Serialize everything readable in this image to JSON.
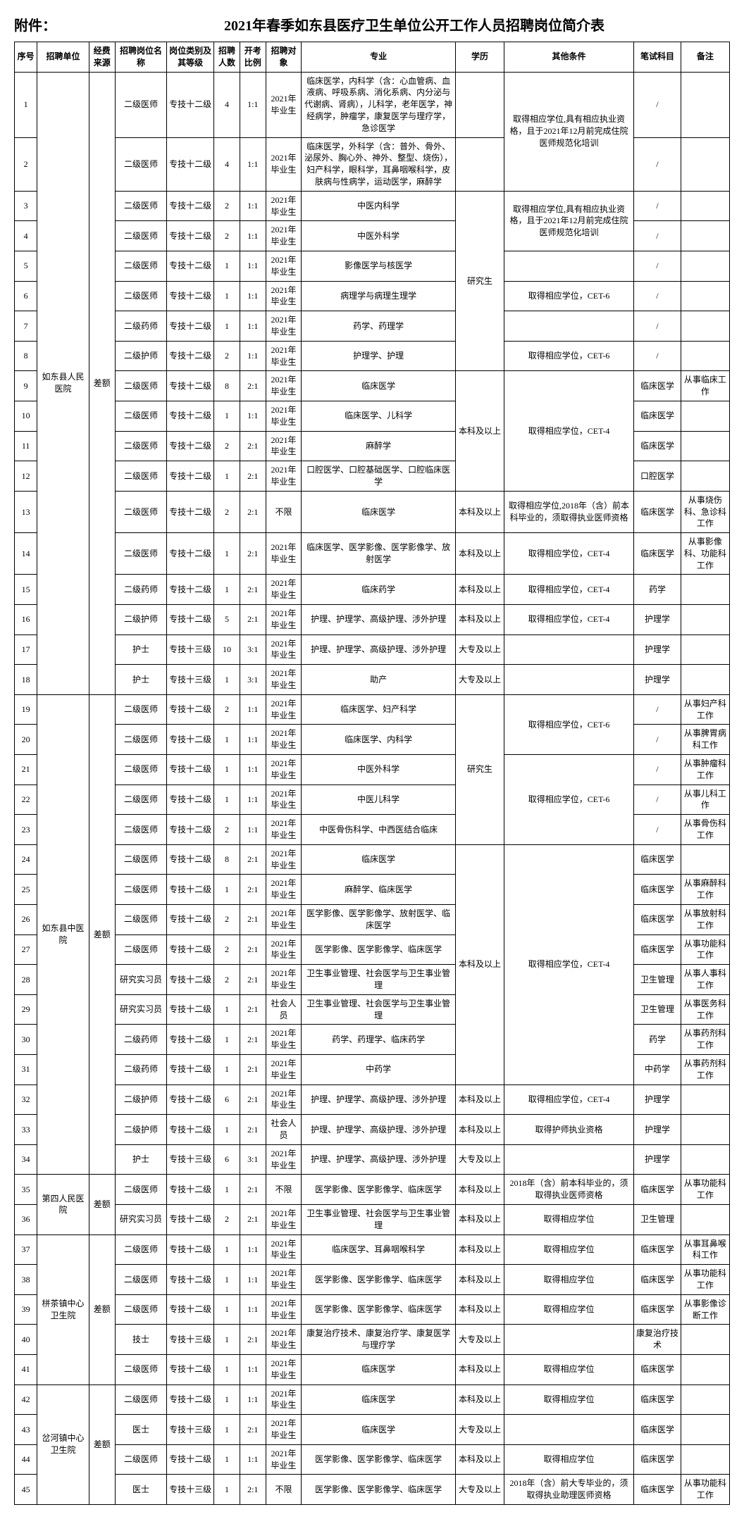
{
  "attach_label": "附件：",
  "title": "2021年春季如东县医疗卫生单位公开工作人员招聘岗位简介表",
  "headers": [
    "序号",
    "招聘单位",
    "经费来源",
    "招聘岗位名 称",
    "岗位类别及其等级",
    "招聘人数",
    "开考比例",
    "招聘对象",
    "专业",
    "学历",
    "其他条件",
    "笔试科目",
    "备注"
  ],
  "groups": [
    {
      "unit": "如东县人民医院",
      "fund": "差额",
      "rows": [
        {
          "seq": "1",
          "post": "二级医师",
          "type": "专技十二级",
          "num": "4",
          "ratio": "1:1",
          "obj": "2021年毕业生",
          "major": "临床医学，内科学（含：心血管病、血液病、呼吸系病、消化系病、内分泌与代谢病、肾病），儿科学，老年医学，神经病学，肿瘤学，康复医学与理疗学，急诊医学",
          "edu": "",
          "other": "",
          "exam": "/",
          "note": "",
          "span_other": 2,
          "other_text": "取得相应学位,具有相应执业资格，且于2021年12月前完成住院医师规范化培训"
        },
        {
          "seq": "2",
          "post": "二级医师",
          "type": "专技十二级",
          "num": "4",
          "ratio": "1:1",
          "obj": "2021年毕业生",
          "major": "临床医学，外科学（含：普外、骨外、泌尿外、胸心外、神外、整型、烧伤），妇产科学，眼科学，耳鼻咽喉科学，皮肤病与性病学，运动医学，麻醉学",
          "edu": "",
          "other": "",
          "exam": "/",
          "note": ""
        },
        {
          "seq": "3",
          "post": "二级医师",
          "type": "专技十二级",
          "num": "2",
          "ratio": "1:1",
          "obj": "2021年毕业生",
          "major": "中医内科学",
          "edu": "",
          "other": "",
          "exam": "/",
          "note": "",
          "span_other": 2,
          "other_text": "取得相应学位,具有相应执业资格，且于2021年12月前完成住院医师规范化培训",
          "span_edu": 6,
          "edu_text": "研究生"
        },
        {
          "seq": "4",
          "post": "二级医师",
          "type": "专技十二级",
          "num": "2",
          "ratio": "1:1",
          "obj": "2021年毕业生",
          "major": "中医外科学",
          "edu": "",
          "other": "",
          "exam": "/",
          "note": ""
        },
        {
          "seq": "5",
          "post": "二级医师",
          "type": "专技十二级",
          "num": "1",
          "ratio": "1:1",
          "obj": "2021年毕业生",
          "major": "影像医学与核医学",
          "edu": "",
          "other": "",
          "other_text": "",
          "exam": "/",
          "note": ""
        },
        {
          "seq": "6",
          "post": "二级医师",
          "type": "专技十二级",
          "num": "1",
          "ratio": "1:1",
          "obj": "2021年毕业生",
          "major": "病理学与病理生理学",
          "edu": "",
          "other": "",
          "other_text": "取得相应学位，CET-6",
          "exam": "/",
          "note": ""
        },
        {
          "seq": "7",
          "post": "二级药师",
          "type": "专技十二级",
          "num": "1",
          "ratio": "1:1",
          "obj": "2021年毕业生",
          "major": "药学、药理学",
          "edu": "",
          "other": "",
          "other_text": "",
          "exam": "/",
          "note": ""
        },
        {
          "seq": "8",
          "post": "二级护师",
          "type": "专技十二级",
          "num": "2",
          "ratio": "1:1",
          "obj": "2021年毕业生",
          "major": "护理学、护理",
          "edu": "",
          "other": "",
          "other_text": "取得相应学位，CET-6",
          "exam": "/",
          "note": ""
        },
        {
          "seq": "9",
          "post": "二级医师",
          "type": "专技十二级",
          "num": "8",
          "ratio": "2:1",
          "obj": "2021年毕业生",
          "major": "临床医学",
          "edu": "",
          "other": "",
          "exam": "临床医学",
          "note": "从事临床工作",
          "span_edu": 4,
          "edu_text": "本科及以上",
          "span_other": 4,
          "other_text": "取得相应学位，CET-4"
        },
        {
          "seq": "10",
          "post": "二级医师",
          "type": "专技十二级",
          "num": "1",
          "ratio": "1:1",
          "obj": "2021年毕业生",
          "major": "临床医学、儿科学",
          "edu": "",
          "other": "",
          "exam": "临床医学",
          "note": ""
        },
        {
          "seq": "11",
          "post": "二级医师",
          "type": "专技十二级",
          "num": "2",
          "ratio": "2:1",
          "obj": "2021年毕业生",
          "major": "麻醉学",
          "edu": "",
          "other": "",
          "exam": "临床医学",
          "note": ""
        },
        {
          "seq": "12",
          "post": "二级医师",
          "type": "专技十二级",
          "num": "1",
          "ratio": "2:1",
          "obj": "2021年毕业生",
          "major": "口腔医学、口腔基础医学、口腔临床医学",
          "edu": "",
          "other": "",
          "exam": "口腔医学",
          "note": ""
        },
        {
          "seq": "13",
          "post": "二级医师",
          "type": "专技十二级",
          "num": "2",
          "ratio": "2:1",
          "obj": "不限",
          "major": "临床医学",
          "edu": "",
          "edu_text": "本科及以上",
          "other": "",
          "other_text": "取得相应学位,2018年（含）前本科毕业的，须取得执业医师资格",
          "exam": "临床医学",
          "note": "从事烧伤科、急诊科工作"
        },
        {
          "seq": "14",
          "post": "二级医师",
          "type": "专技十二级",
          "num": "1",
          "ratio": "2:1",
          "obj": "2021年毕业生",
          "major": "临床医学、医学影像、医学影像学、放射医学",
          "edu": "",
          "edu_text": "本科及以上",
          "other": "",
          "other_text": "取得相应学位，CET-4",
          "exam": "临床医学",
          "note": "从事影像科、功能科工作"
        },
        {
          "seq": "15",
          "post": "二级药师",
          "type": "专技十二级",
          "num": "1",
          "ratio": "2:1",
          "obj": "2021年毕业生",
          "major": "临床药学",
          "edu": "",
          "edu_text": "本科及以上",
          "other": "",
          "other_text": "取得相应学位，CET-4",
          "exam": "药学",
          "note": ""
        },
        {
          "seq": "16",
          "post": "二级护师",
          "type": "专技十二级",
          "num": "5",
          "ratio": "2:1",
          "obj": "2021年毕业生",
          "major": "护理、护理学、高级护理、涉外护理",
          "edu": "",
          "edu_text": "本科及以上",
          "other": "",
          "other_text": "取得相应学位，CET-4",
          "exam": "护理学",
          "note": ""
        },
        {
          "seq": "17",
          "post": "护士",
          "type": "专技十三级",
          "num": "10",
          "ratio": "3:1",
          "obj": "2021年毕业生",
          "major": "护理、护理学、高级护理、涉外护理",
          "edu": "",
          "edu_text": "大专及以上",
          "other": "",
          "other_text": "",
          "exam": "护理学",
          "note": ""
        },
        {
          "seq": "18",
          "post": "护士",
          "type": "专技十三级",
          "num": "1",
          "ratio": "3:1",
          "obj": "2021年毕业生",
          "major": "助产",
          "edu": "",
          "edu_text": "大专及以上",
          "other": "",
          "other_text": "",
          "exam": "护理学",
          "note": ""
        }
      ]
    },
    {
      "unit": "如东县中医院",
      "fund": "差额",
      "rows": [
        {
          "seq": "19",
          "post": "二级医师",
          "type": "专技十二级",
          "num": "2",
          "ratio": "1:1",
          "obj": "2021年毕业生",
          "major": "临床医学、妇产科学",
          "edu": "",
          "other": "",
          "exam": "/",
          "note": "从事妇产科工作",
          "span_edu": 5,
          "edu_text": "研究生",
          "span_other": 2,
          "other_text": "取得相应学位，CET-6"
        },
        {
          "seq": "20",
          "post": "二级医师",
          "type": "专技十二级",
          "num": "1",
          "ratio": "1:1",
          "obj": "2021年毕业生",
          "major": "临床医学、内科学",
          "edu": "",
          "other": "",
          "exam": "/",
          "note": "从事脾胃病科工作"
        },
        {
          "seq": "21",
          "post": "二级医师",
          "type": "专技十二级",
          "num": "1",
          "ratio": "1:1",
          "obj": "2021年毕业生",
          "major": "中医外科学",
          "edu": "",
          "other": "",
          "exam": "/",
          "note": "从事肿瘤科工作",
          "span_other": 3,
          "other_text": "取得相应学位，CET-6"
        },
        {
          "seq": "22",
          "post": "二级医师",
          "type": "专技十二级",
          "num": "1",
          "ratio": "1:1",
          "obj": "2021年毕业生",
          "major": "中医儿科学",
          "edu": "",
          "other": "",
          "exam": "/",
          "note": "从事儿科工作"
        },
        {
          "seq": "23",
          "post": "二级医师",
          "type": "专技十二级",
          "num": "2",
          "ratio": "1:1",
          "obj": "2021年毕业生",
          "major": "中医骨伤科学、中西医结合临床",
          "edu": "",
          "other": "",
          "exam": "/",
          "note": "从事骨伤科工作"
        },
        {
          "seq": "24",
          "post": "二级医师",
          "type": "专技十二级",
          "num": "8",
          "ratio": "2:1",
          "obj": "2021年毕业生",
          "major": "临床医学",
          "edu": "",
          "other": "",
          "exam": "临床医学",
          "note": "",
          "span_edu": 8,
          "edu_text": "本科及以上",
          "span_other": 8,
          "other_text": "取得相应学位，CET-4"
        },
        {
          "seq": "25",
          "post": "二级医师",
          "type": "专技十二级",
          "num": "1",
          "ratio": "2:1",
          "obj": "2021年毕业生",
          "major": "麻醉学、临床医学",
          "edu": "",
          "other": "",
          "exam": "临床医学",
          "note": "从事麻醉科工作"
        },
        {
          "seq": "26",
          "post": "二级医师",
          "type": "专技十二级",
          "num": "2",
          "ratio": "2:1",
          "obj": "2021年毕业生",
          "major": "医学影像、医学影像学、放射医学、临床医学",
          "edu": "",
          "other": "",
          "exam": "临床医学",
          "note": "从事放射科工作"
        },
        {
          "seq": "27",
          "post": "二级医师",
          "type": "专技十二级",
          "num": "2",
          "ratio": "2:1",
          "obj": "2021年毕业生",
          "major": "医学影像、医学影像学、临床医学",
          "edu": "",
          "other": "",
          "exam": "临床医学",
          "note": "从事功能科工作"
        },
        {
          "seq": "28",
          "post": "研究实习员",
          "type": "专技十二级",
          "num": "2",
          "ratio": "2:1",
          "obj": "2021年毕业生",
          "major": "卫生事业管理、社会医学与卫生事业管理",
          "edu": "",
          "other": "",
          "exam": "卫生管理",
          "note": "从事人事科工作"
        },
        {
          "seq": "29",
          "post": "研究实习员",
          "type": "专技十二级",
          "num": "1",
          "ratio": "2:1",
          "obj": "社会人员",
          "major": "卫生事业管理、社会医学与卫生事业管理",
          "edu": "",
          "other": "",
          "exam": "卫生管理",
          "note": "从事医务科工作"
        },
        {
          "seq": "30",
          "post": "二级药师",
          "type": "专技十二级",
          "num": "1",
          "ratio": "2:1",
          "obj": "2021年毕业生",
          "major": "药学、药理学、临床药学",
          "edu": "",
          "other": "",
          "exam": "药学",
          "note": "从事药剂科工作"
        },
        {
          "seq": "31",
          "post": "二级药师",
          "type": "专技十二级",
          "num": "1",
          "ratio": "2:1",
          "obj": "2021年毕业生",
          "major": "中药学",
          "edu": "",
          "other": "",
          "exam": "中药学",
          "note": "从事药剂科工作"
        },
        {
          "seq": "32",
          "post": "二级护师",
          "type": "专技十二级",
          "num": "6",
          "ratio": "2:1",
          "obj": "2021年毕业生",
          "major": "护理、护理学、高级护理、涉外护理",
          "edu": "",
          "edu_text": "本科及以上",
          "other": "",
          "other_text": "取得相应学位，CET-4",
          "exam": "护理学",
          "note": ""
        },
        {
          "seq": "33",
          "post": "二级护师",
          "type": "专技十二级",
          "num": "1",
          "ratio": "2:1",
          "obj": "社会人员",
          "major": "护理、护理学、高级护理、涉外护理",
          "edu": "",
          "edu_text": "本科及以上",
          "other": "",
          "other_text": "取得护师执业资格",
          "exam": "护理学",
          "note": ""
        },
        {
          "seq": "34",
          "post": "护士",
          "type": "专技十三级",
          "num": "6",
          "ratio": "3:1",
          "obj": "2021年毕业生",
          "major": "护理、护理学、高级护理、涉外护理",
          "edu": "",
          "edu_text": "大专及以上",
          "other": "",
          "other_text": "",
          "exam": "护理学",
          "note": ""
        }
      ]
    },
    {
      "unit": "第四人民医院",
      "fund": "差额",
      "rows": [
        {
          "seq": "35",
          "post": "二级医师",
          "type": "专技十二级",
          "num": "1",
          "ratio": "2:1",
          "obj": "不限",
          "major": "医学影像、医学影像学、临床医学",
          "edu": "",
          "edu_text": "本科及以上",
          "other": "",
          "other_text": "2018年（含）前本科毕业的，须取得执业医师资格",
          "exam": "临床医学",
          "note": "从事功能科工作"
        },
        {
          "seq": "36",
          "post": "研究实习员",
          "type": "专技十二级",
          "num": "2",
          "ratio": "2:1",
          "obj": "2021年毕业生",
          "major": "卫生事业管理、社会医学与卫生事业管理",
          "edu": "",
          "edu_text": "本科及以上",
          "other": "",
          "other_text": "取得相应学位",
          "exam": "卫生管理",
          "note": ""
        }
      ]
    },
    {
      "unit": "栟茶镇中心卫生院",
      "fund": "差额",
      "rows": [
        {
          "seq": "37",
          "post": "二级医师",
          "type": "专技十二级",
          "num": "1",
          "ratio": "1:1",
          "obj": "2021年毕业生",
          "major": "临床医学、耳鼻咽喉科学",
          "edu": "",
          "edu_text": "本科及以上",
          "other": "",
          "other_text": "取得相应学位",
          "exam": "临床医学",
          "note": "从事耳鼻喉科工作"
        },
        {
          "seq": "38",
          "post": "二级医师",
          "type": "专技十二级",
          "num": "1",
          "ratio": "1:1",
          "obj": "2021年毕业生",
          "major": "医学影像、医学影像学、临床医学",
          "edu": "",
          "edu_text": "本科及以上",
          "other": "",
          "other_text": "取得相应学位",
          "exam": "临床医学",
          "note": "从事功能科工作"
        },
        {
          "seq": "39",
          "post": "二级医师",
          "type": "专技十二级",
          "num": "1",
          "ratio": "1:1",
          "obj": "2021年毕业生",
          "major": "医学影像、医学影像学、临床医学",
          "edu": "",
          "edu_text": "本科及以上",
          "other": "",
          "other_text": "取得相应学位",
          "exam": "临床医学",
          "note": "从事影像诊断工作"
        },
        {
          "seq": "40",
          "post": "技士",
          "type": "专技十三级",
          "num": "1",
          "ratio": "2:1",
          "obj": "2021年毕业生",
          "major": "康复治疗技术、康复治疗学、康复医学与理疗学",
          "edu": "",
          "edu_text": "大专及以上",
          "other": "",
          "other_text": "",
          "exam": "康复治疗技术",
          "note": ""
        },
        {
          "seq": "41",
          "post": "二级医师",
          "type": "专技十二级",
          "num": "1",
          "ratio": "1:1",
          "obj": "2021年毕业生",
          "major": "临床医学",
          "edu": "",
          "edu_text": "本科及以上",
          "other": "",
          "other_text": "取得相应学位",
          "exam": "临床医学",
          "note": ""
        }
      ]
    },
    {
      "unit": "岔河镇中心卫生院",
      "fund": "差额",
      "rows": [
        {
          "seq": "42",
          "post": "二级医师",
          "type": "专技十二级",
          "num": "1",
          "ratio": "1:1",
          "obj": "2021年毕业生",
          "major": "临床医学",
          "edu": "",
          "edu_text": "本科及以上",
          "other": "",
          "other_text": "取得相应学位",
          "exam": "临床医学",
          "note": ""
        },
        {
          "seq": "43",
          "post": "医士",
          "type": "专技十三级",
          "num": "1",
          "ratio": "2:1",
          "obj": "2021年毕业生",
          "major": "临床医学",
          "edu": "",
          "edu_text": "大专及以上",
          "other": "",
          "other_text": "",
          "exam": "临床医学",
          "note": ""
        },
        {
          "seq": "44",
          "post": "二级医师",
          "type": "专技十二级",
          "num": "1",
          "ratio": "1:1",
          "obj": "2021年毕业生",
          "major": "医学影像、医学影像学、临床医学",
          "edu": "",
          "edu_text": "本科及以上",
          "other": "",
          "other_text": "取得相应学位",
          "exam": "临床医学",
          "note": ""
        },
        {
          "seq": "45",
          "post": "医士",
          "type": "专技十三级",
          "num": "1",
          "ratio": "2:1",
          "obj": "不限",
          "major": "医学影像、医学影像学、临床医学",
          "edu": "",
          "edu_text": "大专及以上",
          "other": "",
          "other_text": "2018年（含）前大专毕业的，须取得执业助理医师资格",
          "exam": "临床医学",
          "note": "从事功能科工作"
        }
      ]
    }
  ]
}
